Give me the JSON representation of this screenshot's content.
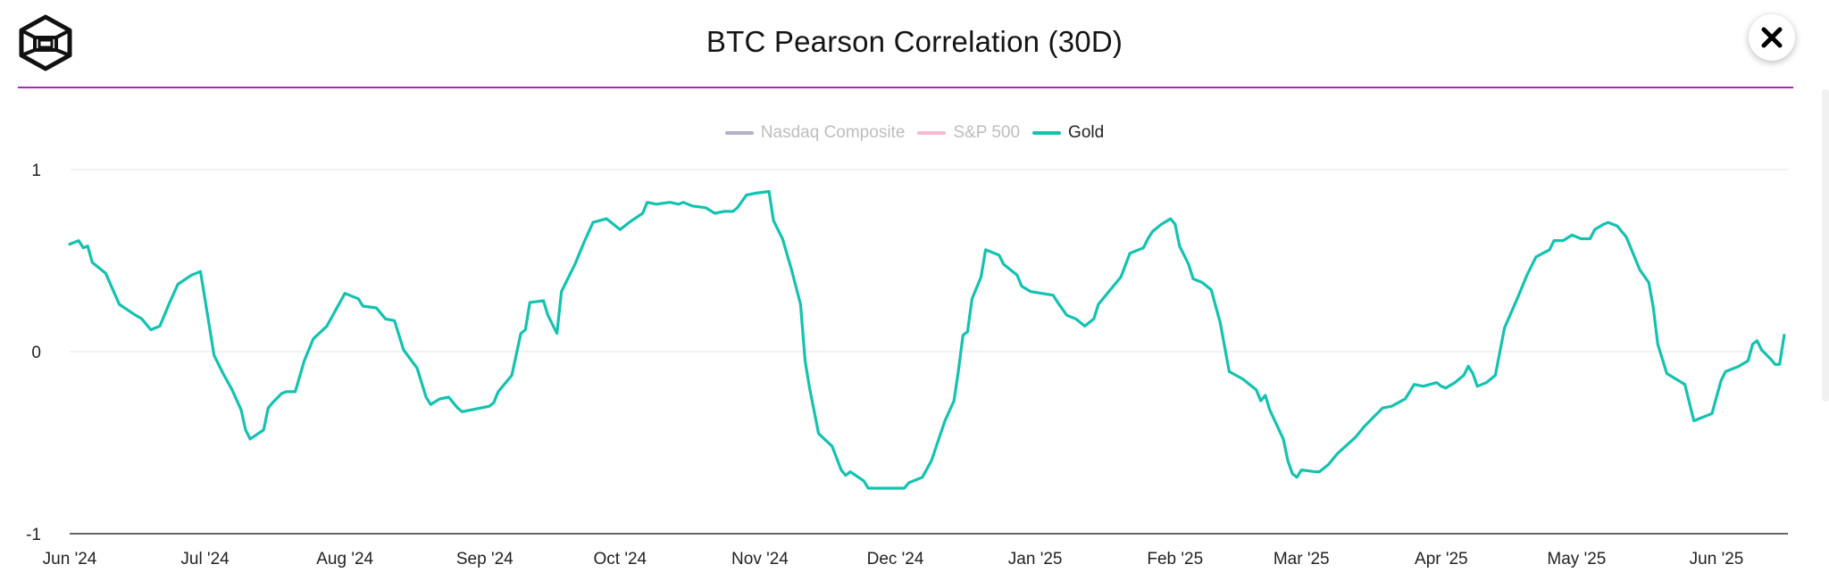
{
  "header": {
    "title": "BTC Pearson Correlation (30D)",
    "close_icon": "close-icon",
    "logo_icon": "cube-logo-icon"
  },
  "colors": {
    "accent_divider": "#b61ec6",
    "gold": "#14c2b0",
    "nasdaq": "#b4b0c8",
    "sp500": "#f7b8d2",
    "grid": "#e6e6e6",
    "axis": "#333333"
  },
  "legend": [
    {
      "label": "Nasdaq Composite",
      "color": "#b4b0c8",
      "active": false
    },
    {
      "label": "S&P 500",
      "color": "#f7b8d2",
      "active": false
    },
    {
      "label": "Gold",
      "color": "#14c2b0",
      "active": true
    }
  ],
  "chart_data": {
    "type": "line",
    "title": "BTC Pearson Correlation (30D)",
    "ylim": [
      -1,
      1
    ],
    "y_ticks": [
      "1",
      "0",
      "-1"
    ],
    "y_tick_values": [
      1,
      0,
      -1
    ],
    "x_ticks": [
      "Jun '24",
      "Jul '24",
      "Aug '24",
      "Sep '24",
      "Oct '24",
      "Nov '24",
      "Dec '24",
      "Jan '25",
      "Feb '25",
      "Mar '25",
      "Apr '25",
      "May '25",
      "Jun '25"
    ],
    "x_tick_dates": [
      "2024-06-01",
      "2024-07-01",
      "2024-08-01",
      "2024-09-01",
      "2024-10-01",
      "2024-11-01",
      "2024-12-01",
      "2025-01-01",
      "2025-02-01",
      "2025-03-01",
      "2025-04-01",
      "2025-05-01",
      "2025-06-01"
    ],
    "grid": true,
    "legend_position": "top-center",
    "series": [
      {
        "name": "Gold",
        "color": "#14c2b0",
        "points": [
          [
            "2024-06-01",
            0.59
          ],
          [
            "2024-06-03",
            0.61
          ],
          [
            "2024-06-04",
            0.57
          ],
          [
            "2024-06-05",
            0.58
          ],
          [
            "2024-06-06",
            0.49
          ],
          [
            "2024-06-09",
            0.43
          ],
          [
            "2024-06-12",
            0.26
          ],
          [
            "2024-06-15",
            0.21
          ],
          [
            "2024-06-17",
            0.18
          ],
          [
            "2024-06-19",
            0.12
          ],
          [
            "2024-06-21",
            0.14
          ],
          [
            "2024-06-23",
            0.26
          ],
          [
            "2024-06-25",
            0.37
          ],
          [
            "2024-06-28",
            0.42
          ],
          [
            "2024-06-30",
            0.44
          ],
          [
            "2024-07-03",
            -0.02
          ],
          [
            "2024-07-05",
            -0.12
          ],
          [
            "2024-07-07",
            -0.21
          ],
          [
            "2024-07-09",
            -0.32
          ],
          [
            "2024-07-10",
            -0.43
          ],
          [
            "2024-07-11",
            -0.48
          ],
          [
            "2024-07-14",
            -0.43
          ],
          [
            "2024-07-15",
            -0.31
          ],
          [
            "2024-07-16",
            -0.28
          ],
          [
            "2024-07-18",
            -0.23
          ],
          [
            "2024-07-19",
            -0.22
          ],
          [
            "2024-07-21",
            -0.22
          ],
          [
            "2024-07-23",
            -0.05
          ],
          [
            "2024-07-25",
            0.07
          ],
          [
            "2024-07-28",
            0.14
          ],
          [
            "2024-08-01",
            0.32
          ],
          [
            "2024-08-04",
            0.29
          ],
          [
            "2024-08-05",
            0.25
          ],
          [
            "2024-08-08",
            0.24
          ],
          [
            "2024-08-10",
            0.18
          ],
          [
            "2024-08-12",
            0.17
          ],
          [
            "2024-08-14",
            0.01
          ],
          [
            "2024-08-17",
            -0.09
          ],
          [
            "2024-08-19",
            -0.25
          ],
          [
            "2024-08-20",
            -0.29
          ],
          [
            "2024-08-22",
            -0.26
          ],
          [
            "2024-08-24",
            -0.25
          ],
          [
            "2024-08-26",
            -0.31
          ],
          [
            "2024-08-27",
            -0.33
          ],
          [
            "2024-08-29",
            -0.32
          ],
          [
            "2024-09-02",
            -0.3
          ],
          [
            "2024-09-03",
            -0.28
          ],
          [
            "2024-09-04",
            -0.22
          ],
          [
            "2024-09-07",
            -0.13
          ],
          [
            "2024-09-09",
            0.1
          ],
          [
            "2024-09-10",
            0.12
          ],
          [
            "2024-09-11",
            0.27
          ],
          [
            "2024-09-14",
            0.28
          ],
          [
            "2024-09-15",
            0.2
          ],
          [
            "2024-09-17",
            0.1
          ],
          [
            "2024-09-18",
            0.33
          ],
          [
            "2024-09-21",
            0.48
          ],
          [
            "2024-09-23",
            0.6
          ],
          [
            "2024-09-25",
            0.71
          ],
          [
            "2024-09-28",
            0.73
          ],
          [
            "2024-10-01",
            0.67
          ],
          [
            "2024-10-03",
            0.71
          ],
          [
            "2024-10-06",
            0.76
          ],
          [
            "2024-10-07",
            0.82
          ],
          [
            "2024-10-09",
            0.81
          ],
          [
            "2024-10-12",
            0.82
          ],
          [
            "2024-10-14",
            0.81
          ],
          [
            "2024-10-15",
            0.82
          ],
          [
            "2024-10-17",
            0.8
          ],
          [
            "2024-10-20",
            0.79
          ],
          [
            "2024-10-22",
            0.76
          ],
          [
            "2024-10-24",
            0.77
          ],
          [
            "2024-10-26",
            0.77
          ],
          [
            "2024-10-27",
            0.79
          ],
          [
            "2024-10-29",
            0.86
          ],
          [
            "2024-10-31",
            0.87
          ],
          [
            "2024-11-03",
            0.88
          ],
          [
            "2024-11-04",
            0.72
          ],
          [
            "2024-11-06",
            0.62
          ],
          [
            "2024-11-08",
            0.45
          ],
          [
            "2024-11-10",
            0.26
          ],
          [
            "2024-11-11",
            -0.05
          ],
          [
            "2024-11-12",
            -0.2
          ],
          [
            "2024-11-14",
            -0.45
          ],
          [
            "2024-11-17",
            -0.52
          ],
          [
            "2024-11-19",
            -0.65
          ],
          [
            "2024-11-20",
            -0.68
          ],
          [
            "2024-11-21",
            -0.66
          ],
          [
            "2024-11-24",
            -0.71
          ],
          [
            "2024-11-25",
            -0.75
          ],
          [
            "2024-11-28",
            -0.75
          ],
          [
            "2024-12-01",
            -0.75
          ],
          [
            "2024-12-03",
            -0.75
          ],
          [
            "2024-12-04",
            -0.72
          ],
          [
            "2024-12-07",
            -0.69
          ],
          [
            "2024-12-09",
            -0.6
          ],
          [
            "2024-12-12",
            -0.38
          ],
          [
            "2024-12-14",
            -0.27
          ],
          [
            "2024-12-15",
            -0.1
          ],
          [
            "2024-12-16",
            0.09
          ],
          [
            "2024-12-17",
            0.11
          ],
          [
            "2024-12-18",
            0.29
          ],
          [
            "2024-12-20",
            0.41
          ],
          [
            "2024-12-21",
            0.56
          ],
          [
            "2024-12-24",
            0.53
          ],
          [
            "2024-12-25",
            0.48
          ],
          [
            "2024-12-28",
            0.42
          ],
          [
            "2024-12-29",
            0.36
          ],
          [
            "2024-12-31",
            0.33
          ],
          [
            "2025-01-05",
            0.31
          ],
          [
            "2025-01-06",
            0.27
          ],
          [
            "2025-01-08",
            0.2
          ],
          [
            "2025-01-10",
            0.18
          ],
          [
            "2025-01-12",
            0.14
          ],
          [
            "2025-01-14",
            0.18
          ],
          [
            "2025-01-15",
            0.26
          ],
          [
            "2025-01-18",
            0.35
          ],
          [
            "2025-01-20",
            0.41
          ],
          [
            "2025-01-22",
            0.54
          ],
          [
            "2025-01-25",
            0.57
          ],
          [
            "2025-01-26",
            0.62
          ],
          [
            "2025-01-27",
            0.66
          ],
          [
            "2025-01-29",
            0.7
          ],
          [
            "2025-01-31",
            0.73
          ],
          [
            "2025-02-01",
            0.7
          ],
          [
            "2025-02-02",
            0.58
          ],
          [
            "2025-02-04",
            0.48
          ],
          [
            "2025-02-05",
            0.4
          ],
          [
            "2025-02-07",
            0.38
          ],
          [
            "2025-02-09",
            0.34
          ],
          [
            "2025-02-11",
            0.16
          ],
          [
            "2025-02-13",
            -0.11
          ],
          [
            "2025-02-16",
            -0.15
          ],
          [
            "2025-02-19",
            -0.21
          ],
          [
            "2025-02-20",
            -0.27
          ],
          [
            "2025-02-21",
            -0.24
          ],
          [
            "2025-02-22",
            -0.32
          ],
          [
            "2025-02-25",
            -0.48
          ],
          [
            "2025-02-26",
            -0.6
          ],
          [
            "2025-02-27",
            -0.67
          ],
          [
            "2025-02-28",
            -0.69
          ],
          [
            "2025-03-01",
            -0.65
          ],
          [
            "2025-03-04",
            -0.66
          ],
          [
            "2025-03-05",
            -0.66
          ],
          [
            "2025-03-07",
            -0.62
          ],
          [
            "2025-03-09",
            -0.56
          ],
          [
            "2025-03-13",
            -0.47
          ],
          [
            "2025-03-15",
            -0.41
          ],
          [
            "2025-03-17",
            -0.36
          ],
          [
            "2025-03-19",
            -0.31
          ],
          [
            "2025-03-21",
            -0.3
          ],
          [
            "2025-03-24",
            -0.26
          ],
          [
            "2025-03-25",
            -0.22
          ],
          [
            "2025-03-26",
            -0.18
          ],
          [
            "2025-03-28",
            -0.19
          ],
          [
            "2025-03-31",
            -0.17
          ],
          [
            "2025-04-01",
            -0.19
          ],
          [
            "2025-04-02",
            -0.2
          ],
          [
            "2025-04-04",
            -0.17
          ],
          [
            "2025-04-06",
            -0.13
          ],
          [
            "2025-04-07",
            -0.08
          ],
          [
            "2025-04-08",
            -0.12
          ],
          [
            "2025-04-09",
            -0.19
          ],
          [
            "2025-04-11",
            -0.17
          ],
          [
            "2025-04-13",
            -0.13
          ],
          [
            "2025-04-15",
            0.13
          ],
          [
            "2025-04-18",
            0.3
          ],
          [
            "2025-04-20",
            0.42
          ],
          [
            "2025-04-22",
            0.52
          ],
          [
            "2025-04-25",
            0.56
          ],
          [
            "2025-04-26",
            0.61
          ],
          [
            "2025-04-28",
            0.61
          ],
          [
            "2025-04-30",
            0.64
          ],
          [
            "2025-05-02",
            0.62
          ],
          [
            "2025-05-04",
            0.62
          ],
          [
            "2025-05-05",
            0.67
          ],
          [
            "2025-05-07",
            0.7
          ],
          [
            "2025-05-08",
            0.71
          ],
          [
            "2025-05-10",
            0.69
          ],
          [
            "2025-05-12",
            0.63
          ],
          [
            "2025-05-14",
            0.51
          ],
          [
            "2025-05-15",
            0.45
          ],
          [
            "2025-05-17",
            0.38
          ],
          [
            "2025-05-18",
            0.24
          ],
          [
            "2025-05-19",
            0.04
          ],
          [
            "2025-05-21",
            -0.12
          ],
          [
            "2025-05-23",
            -0.15
          ],
          [
            "2025-05-25",
            -0.18
          ],
          [
            "2025-05-27",
            -0.38
          ],
          [
            "2025-05-31",
            -0.34
          ],
          [
            "2025-06-02",
            -0.16
          ],
          [
            "2025-06-03",
            -0.11
          ],
          [
            "2025-06-05",
            -0.09
          ],
          [
            "2025-06-06",
            -0.08
          ],
          [
            "2025-06-08",
            -0.05
          ],
          [
            "2025-06-09",
            0.04
          ],
          [
            "2025-06-10",
            0.06
          ],
          [
            "2025-06-11",
            0.01
          ],
          [
            "2025-06-13",
            -0.04
          ],
          [
            "2025-06-14",
            -0.07
          ],
          [
            "2025-06-15",
            -0.07
          ],
          [
            "2025-06-16",
            0.09
          ]
        ]
      }
    ]
  }
}
